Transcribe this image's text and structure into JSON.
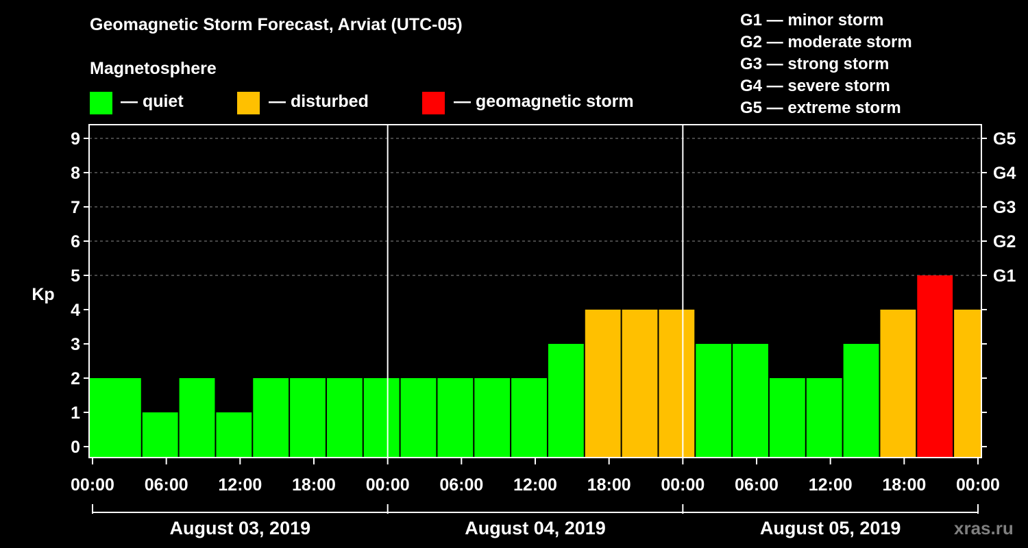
{
  "title": "Geomagnetic Storm Forecast, Arviat (UTC-05)",
  "legend": {
    "heading": "Magnetosphere",
    "items": [
      {
        "label": "— quiet",
        "color": "#00ff00"
      },
      {
        "label": "— disturbed",
        "color": "#ffc000"
      },
      {
        "label": "— geomagnetic storm",
        "color": "#ff0000"
      }
    ]
  },
  "storm_levels": [
    "G1 — minor storm",
    "G2 — moderate storm",
    "G3 — strong storm",
    "G4 — severe storm",
    "G5 — extreme storm"
  ],
  "watermark": "xras.ru",
  "chart_data": {
    "type": "bar",
    "title": "Geomagnetic Storm Forecast, Arviat (UTC-05)",
    "ylabel": "Kp",
    "ylim": [
      0,
      9
    ],
    "y_ticks": [
      "0",
      "1",
      "2",
      "3",
      "4",
      "5",
      "6",
      "7",
      "8",
      "9"
    ],
    "right_ticks": [
      {
        "kp": 5,
        "label": "G1"
      },
      {
        "kp": 6,
        "label": "G2"
      },
      {
        "kp": 7,
        "label": "G3"
      },
      {
        "kp": 8,
        "label": "G4"
      },
      {
        "kp": 9,
        "label": "G5"
      }
    ],
    "x_range_hours": [
      0,
      72
    ],
    "x_ticks": [
      "00:00",
      "06:00",
      "12:00",
      "18:00",
      "00:00",
      "06:00",
      "12:00",
      "18:00",
      "00:00",
      "06:00",
      "12:00",
      "18:00",
      "00:00"
    ],
    "days": [
      "August 03, 2019",
      "August 04, 2019",
      "August 05, 2019"
    ],
    "bar_start_hours": [
      -1,
      1,
      4,
      7,
      10,
      13,
      16,
      19,
      22,
      25,
      28,
      31,
      34,
      37,
      40,
      43,
      46,
      49,
      52,
      55,
      58,
      61,
      64,
      67,
      70
    ],
    "bar_width_hours": 3,
    "values": [
      2,
      2,
      1,
      2,
      1,
      2,
      2,
      2,
      2,
      2,
      2,
      2,
      2,
      3,
      4,
      4,
      4,
      3,
      3,
      2,
      2,
      3,
      4,
      5,
      4
    ],
    "grid": true,
    "colors": {
      "quiet": "#00ff00",
      "disturbed": "#ffc000",
      "storm": "#ff0000"
    },
    "thresholds": {
      "disturbed": 4,
      "storm": 5
    }
  }
}
